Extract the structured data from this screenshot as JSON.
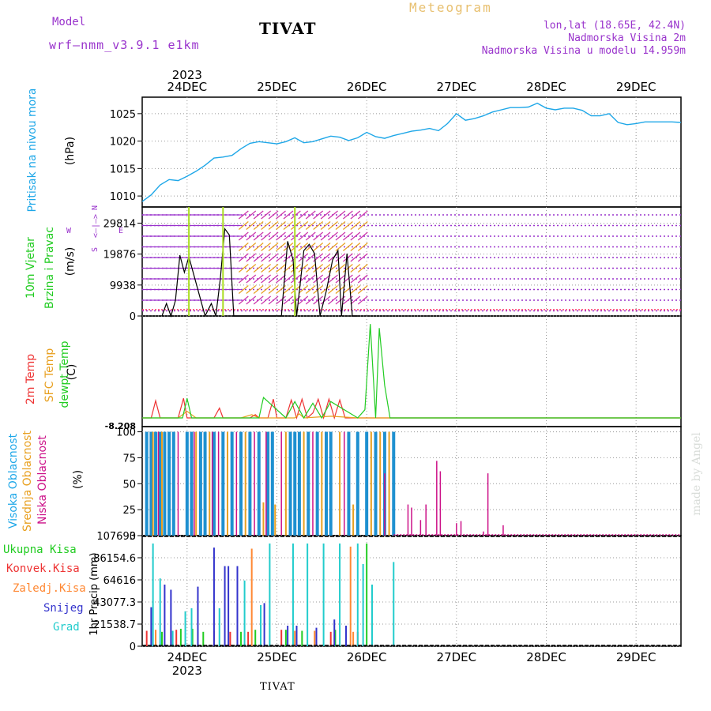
{
  "header": {
    "model_label": "Model",
    "model_name": "wrf—nmm_v3.9.1 e1km",
    "station": "TIVAT",
    "product": "Meteogram",
    "lonlat": "lon,lat (18.65E, 42.4N)",
    "elevation": "Nadmorska Visina 2m",
    "model_elevation": "Nadmorska Visina u modelu 14.959m"
  },
  "footer": {
    "station": "TIVAT",
    "watermark": "made by Angel"
  },
  "time_axis": {
    "year": "2023",
    "days": [
      "24DEC",
      "25DEC",
      "26DEC",
      "27DEC",
      "28DEC",
      "29DEC"
    ],
    "start_day": 23.5,
    "end_day": 29.5
  },
  "colors": {
    "pressure": "#1ea7e8",
    "wind_label": "#22cc22",
    "temp2m": "#ee3333",
    "sfc_temp": "#e8a020",
    "dewpt": "#22cc22",
    "cloud_high": "#1e90d0",
    "cloud_mid": "#e8a020",
    "cloud_low": "#cc1188",
    "precip_total": "#22cc22",
    "precip_conv": "#ee3333",
    "precip_frz": "#ff8833",
    "precip_snow": "#3333cc",
    "precip_grad": "#22cccc",
    "wind_barb": "#9933cc",
    "header_purple": "#9933cc",
    "header_gold": "#e8c070"
  },
  "panels": {
    "pressure": {
      "label": "Pritisak na nivou mora",
      "unit": "(hPa)"
    },
    "wind": {
      "label1": "10m Vjetar",
      "label2": "Brzina i Pravac",
      "unit": "(m/s)",
      "compass": [
        "N",
        "<—|—>",
        "S",
        "W",
        "E"
      ]
    },
    "temp": {
      "label1": "2m Temp",
      "label2": "SFC Temp",
      "label3": "dewpt Temp",
      "unit": "(C)",
      "ytick_label": "-8.208"
    },
    "cloud": {
      "label1": "Visoka Oblacnost",
      "label2": "Srednja Oblacnost",
      "label3": "Niska Oblacnost",
      "unit": "(%)"
    },
    "precip": {
      "unit": "1hr Precip (mm)",
      "legend": [
        "Ukupna Kisa",
        "Konvek.Kisa",
        "Zaledj.Kisa",
        "Snijeg",
        "Grad"
      ]
    }
  },
  "chart_data": [
    {
      "type": "line",
      "panel": "pressure",
      "ylabel": "(hPa)",
      "ylim": [
        1008,
        1028
      ],
      "yticks": [
        1010,
        1015,
        1020,
        1025
      ],
      "grid": true,
      "x_unit": "day of December 2023",
      "series": [
        {
          "name": "Pritisak na nivou mora",
          "x": [
            23.5,
            23.6,
            23.7,
            23.8,
            23.9,
            24.0,
            24.1,
            24.2,
            24.3,
            24.4,
            24.5,
            24.6,
            24.7,
            24.8,
            24.9,
            25.0,
            25.1,
            25.2,
            25.3,
            25.4,
            25.5,
            25.6,
            25.7,
            25.8,
            25.9,
            26.0,
            26.1,
            26.2,
            26.3,
            26.4,
            26.5,
            26.6,
            26.7,
            26.8,
            26.9,
            27.0,
            27.1,
            27.2,
            27.3,
            27.4,
            27.5,
            27.6,
            27.7,
            27.8,
            27.9,
            28.0,
            28.1,
            28.2,
            28.3,
            28.4,
            28.5,
            28.6,
            28.7,
            28.8,
            28.9,
            29.0,
            29.1,
            29.2,
            29.3,
            29.4,
            29.5
          ],
          "y": [
            1009.0,
            1010.2,
            1012.0,
            1013.0,
            1012.8,
            1013.6,
            1014.5,
            1015.6,
            1016.9,
            1017.1,
            1017.4,
            1018.6,
            1019.6,
            1019.9,
            1019.7,
            1019.5,
            1019.9,
            1020.6,
            1019.7,
            1019.9,
            1020.4,
            1020.9,
            1020.7,
            1020.1,
            1020.6,
            1021.6,
            1020.8,
            1020.5,
            1021.0,
            1021.4,
            1021.8,
            1022.0,
            1022.3,
            1021.9,
            1023.2,
            1025.0,
            1023.8,
            1024.1,
            1024.6,
            1025.3,
            1025.7,
            1026.1,
            1026.1,
            1026.2,
            1026.9,
            1026.0,
            1025.7,
            1026.0,
            1026.0,
            1025.6,
            1024.6,
            1024.6,
            1025.0,
            1023.4,
            1023.0,
            1023.2,
            1023.5,
            1023.5,
            1023.5,
            1023.5,
            1023.4
          ]
        }
      ]
    },
    {
      "type": "line",
      "panel": "wind",
      "ylabel": "(m/s)",
      "ylim": [
        0,
        35000
      ],
      "yticks": [
        0,
        9938,
        19876,
        29814
      ],
      "grid": true,
      "series": [
        {
          "name": "10m Vjetar",
          "x": [
            23.72,
            23.77,
            23.82,
            23.87,
            23.92,
            23.97,
            24.02,
            24.2,
            24.27,
            24.32,
            24.37,
            24.42,
            24.47,
            24.52,
            24.62,
            24.7,
            24.9,
            25.05,
            25.12,
            25.18,
            25.22,
            25.3,
            25.36,
            25.42,
            25.48,
            25.55,
            25.62,
            25.68,
            25.72,
            25.78,
            25.84,
            25.9
          ],
          "y": [
            0,
            4000,
            0,
            5000,
            19500,
            14000,
            19000,
            0,
            4000,
            0,
            12000,
            28000,
            26000,
            0,
            0,
            0,
            0,
            0,
            24000,
            18000,
            0,
            21000,
            23000,
            20000,
            0,
            8000,
            18000,
            21000,
            0,
            20000,
            0,
            0
          ]
        }
      ]
    },
    {
      "type": "line",
      "panel": "temp",
      "ylabel": "(C)",
      "series": [
        {
          "name": "2m Temp",
          "x": [
            23.5,
            23.6,
            23.65,
            23.7,
            23.9,
            23.96,
            24.0,
            24.06,
            24.3,
            24.36,
            24.4,
            24.5,
            24.7,
            24.76,
            24.8,
            24.9,
            24.96,
            25.0,
            25.1,
            25.16,
            25.22,
            25.28,
            25.34,
            25.4,
            25.46,
            25.52,
            25.58,
            25.64,
            25.7,
            25.76,
            25.8,
            26.0,
            26.1,
            29.5
          ],
          "y": [
            0,
            0,
            21,
            0,
            0,
            24,
            0,
            0,
            0,
            12,
            0,
            0,
            0,
            4,
            0,
            0,
            23,
            0,
            0,
            22,
            0,
            23,
            0,
            6,
            23,
            0,
            23,
            0,
            22,
            0,
            0,
            0,
            0,
            0
          ]
        },
        {
          "name": "SFC Temp",
          "x": [
            23.5,
            23.9,
            24.0,
            24.1,
            24.6,
            24.72,
            24.8,
            25.2,
            25.25,
            25.3,
            25.6,
            25.9,
            26.0,
            29.5
          ],
          "y": [
            0,
            0,
            8,
            0,
            0,
            4,
            0,
            0,
            5,
            0,
            2,
            0,
            0,
            0
          ]
        },
        {
          "name": "dewpt Temp",
          "x": [
            23.5,
            23.95,
            24.0,
            24.05,
            24.7,
            24.8,
            24.85,
            25.1,
            25.2,
            25.3,
            25.4,
            25.5,
            25.6,
            25.9,
            25.98,
            26.04,
            26.1,
            26.14,
            26.2,
            26.26,
            29.5
          ],
          "y": [
            0,
            0,
            24,
            0,
            0,
            0,
            25,
            0,
            20,
            0,
            18,
            0,
            20,
            0,
            10,
            115,
            0,
            110,
            40,
            0,
            0
          ]
        }
      ]
    },
    {
      "type": "bar",
      "panel": "cloud",
      "ylabel": "(%)",
      "ylim": [
        0,
        105
      ],
      "yticks": [
        0,
        25,
        50,
        75,
        100
      ],
      "grid": true,
      "series": [
        {
          "name": "Visoka Oblacnost",
          "x": [
            23.55,
            23.6,
            23.65,
            23.7,
            23.75,
            23.8,
            23.85,
            24.0,
            24.05,
            24.15,
            24.2,
            24.3,
            24.4,
            24.5,
            24.6,
            24.7,
            24.8,
            24.9,
            24.95,
            25.15,
            25.2,
            25.25,
            25.35,
            25.45,
            25.55,
            25.6,
            25.8,
            25.9,
            26.0,
            26.1,
            26.2,
            26.3
          ],
          "values": [
            100,
            100,
            100,
            100,
            100,
            100,
            100,
            100,
            100,
            100,
            100,
            100,
            100,
            100,
            100,
            100,
            100,
            100,
            100,
            100,
            100,
            100,
            100,
            100,
            100,
            100,
            100,
            100,
            100,
            100,
            100,
            100
          ]
        },
        {
          "name": "Srednja Oblacnost",
          "x": [
            23.62,
            23.72,
            24.1,
            24.25,
            24.45,
            24.65,
            24.85,
            24.98,
            25.1,
            25.3,
            25.5,
            25.7,
            25.85,
            26.05,
            26.15,
            26.25
          ],
          "values": [
            100,
            100,
            100,
            100,
            100,
            100,
            32,
            30,
            100,
            100,
            100,
            100,
            30,
            100,
            100,
            100
          ]
        },
        {
          "name": "Niska Oblacnost",
          "x": [
            23.68,
            23.9,
            24.08,
            24.28,
            24.35,
            24.55,
            24.75,
            24.88,
            25.05,
            25.4,
            25.75,
            26.2,
            26.46,
            26.5,
            26.6,
            26.66,
            26.78,
            26.82,
            27.0,
            27.05,
            27.3,
            27.35,
            27.52
          ],
          "values": [
            100,
            100,
            100,
            100,
            100,
            100,
            100,
            100,
            100,
            100,
            100,
            60,
            30,
            27,
            15,
            30,
            72,
            62,
            12,
            14,
            4,
            60,
            10
          ]
        }
      ]
    },
    {
      "type": "bar",
      "panel": "precip",
      "ylabel": "1hr Precip (mm)",
      "ylim": [
        0,
        107693
      ],
      "yticks": [
        0,
        21538.7,
        43077.3,
        64616,
        86154.6,
        107693
      ],
      "grid": true,
      "series": [
        {
          "name": "Ukupna Kisa",
          "x": [
            23.72,
            23.93,
            24.06,
            24.18,
            24.6,
            24.76,
            25.1,
            25.28,
            25.65,
            26.0
          ],
          "values": [
            14000,
            17000,
            17000,
            14000,
            14000,
            16000,
            16000,
            15000,
            16000,
            100000
          ]
        },
        {
          "name": "Konvek.Kisa",
          "x": [
            23.55,
            23.88,
            24.3,
            24.48,
            24.68,
            25.05,
            25.6,
            25.9
          ],
          "values": [
            15000,
            16000,
            15000,
            14000,
            14000,
            16000,
            14000,
            14000
          ]
        },
        {
          "name": "Zaledj.Kisa",
          "x": [
            23.65,
            24.12,
            24.72,
            25.2,
            25.42,
            25.82,
            25.85
          ],
          "values": [
            16000,
            14000,
            95000,
            15000,
            15000,
            97000,
            14000
          ]
        },
        {
          "name": "Snijeg",
          "x": [
            23.6,
            23.75,
            23.82,
            24.12,
            24.3,
            24.42,
            24.46,
            24.56,
            24.86,
            25.12,
            25.22,
            25.44,
            25.64,
            25.77
          ],
          "values": [
            38000,
            60000,
            55000,
            58000,
            96000,
            78000,
            78000,
            78000,
            42000,
            20000,
            20000,
            18000,
            26000,
            20000
          ]
        },
        {
          "name": "Grad",
          "x": [
            23.62,
            23.7,
            23.84,
            23.98,
            24.05,
            24.36,
            24.64,
            24.82,
            24.92,
            25.18,
            25.34,
            25.52,
            25.7,
            25.9,
            25.96,
            26.06,
            26.3
          ],
          "values": [
            100000,
            66000,
            15000,
            34000,
            37000,
            37000,
            64000,
            40000,
            100000,
            100000,
            100000,
            100000,
            100000,
            100000,
            80000,
            60000,
            82000
          ]
        }
      ]
    }
  ]
}
